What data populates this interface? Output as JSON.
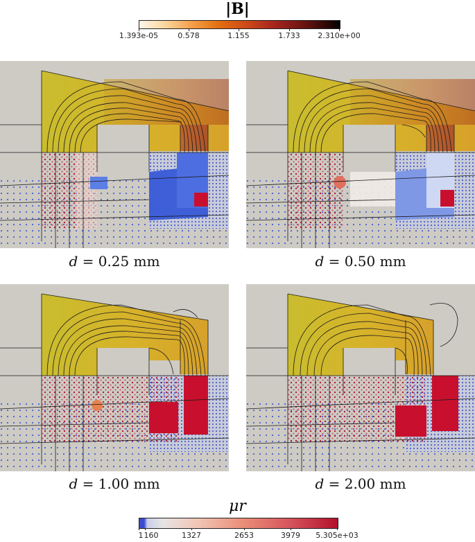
{
  "colorbar_top": {
    "title": "|B|",
    "ticks": [
      "1.393e-05",
      "0.578",
      "1.155",
      "1.733",
      "2.310e+00"
    ]
  },
  "colorbar_bottom": {
    "title": "μr",
    "ticks": [
      "1",
      "160",
      "1327",
      "2653",
      "3979",
      "5.305e+03"
    ]
  },
  "panels": [
    {
      "label_var": "d",
      "label_rest": " = 0.25 mm"
    },
    {
      "label_var": "d",
      "label_rest": " = 0.50 mm"
    },
    {
      "label_var": "d",
      "label_rest": " = 1.00 mm"
    },
    {
      "label_var": "d",
      "label_rest": " = 2.00 mm"
    }
  ]
}
